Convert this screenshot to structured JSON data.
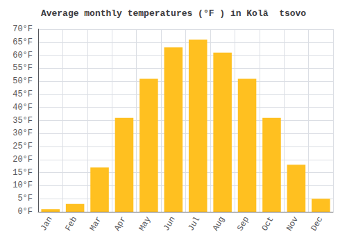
{
  "chart_data": {
    "type": "bar",
    "title": "Average monthly temperatures (°F ) in Kolâ  tsovo",
    "categories": [
      "Jan",
      "Feb",
      "Mar",
      "Apr",
      "May",
      "Jun",
      "Jul",
      "Aug",
      "Sep",
      "Oct",
      "Nov",
      "Dec"
    ],
    "values": [
      1,
      3,
      17,
      36,
      51,
      63,
      66,
      61,
      51,
      36,
      18,
      5
    ],
    "color": "#FFC020",
    "ylim": [
      0,
      70
    ],
    "yticks": [
      {
        "value": 0,
        "label": "0°F"
      },
      {
        "value": 5,
        "label": "5°F"
      },
      {
        "value": 10,
        "label": "10°F"
      },
      {
        "value": 15,
        "label": "15°F"
      },
      {
        "value": 20,
        "label": "20°F"
      },
      {
        "value": 25,
        "label": "25°F"
      },
      {
        "value": 30,
        "label": "30°F"
      },
      {
        "value": 35,
        "label": "35°F"
      },
      {
        "value": 40,
        "label": "40°F"
      },
      {
        "value": 45,
        "label": "45°F"
      },
      {
        "value": 50,
        "label": "50°F"
      },
      {
        "value": 55,
        "label": "55°F"
      },
      {
        "value": 60,
        "label": "60°F"
      },
      {
        "value": 65,
        "label": "65°F"
      },
      {
        "value": 70,
        "label": "70°F"
      }
    ],
    "grid": true
  }
}
